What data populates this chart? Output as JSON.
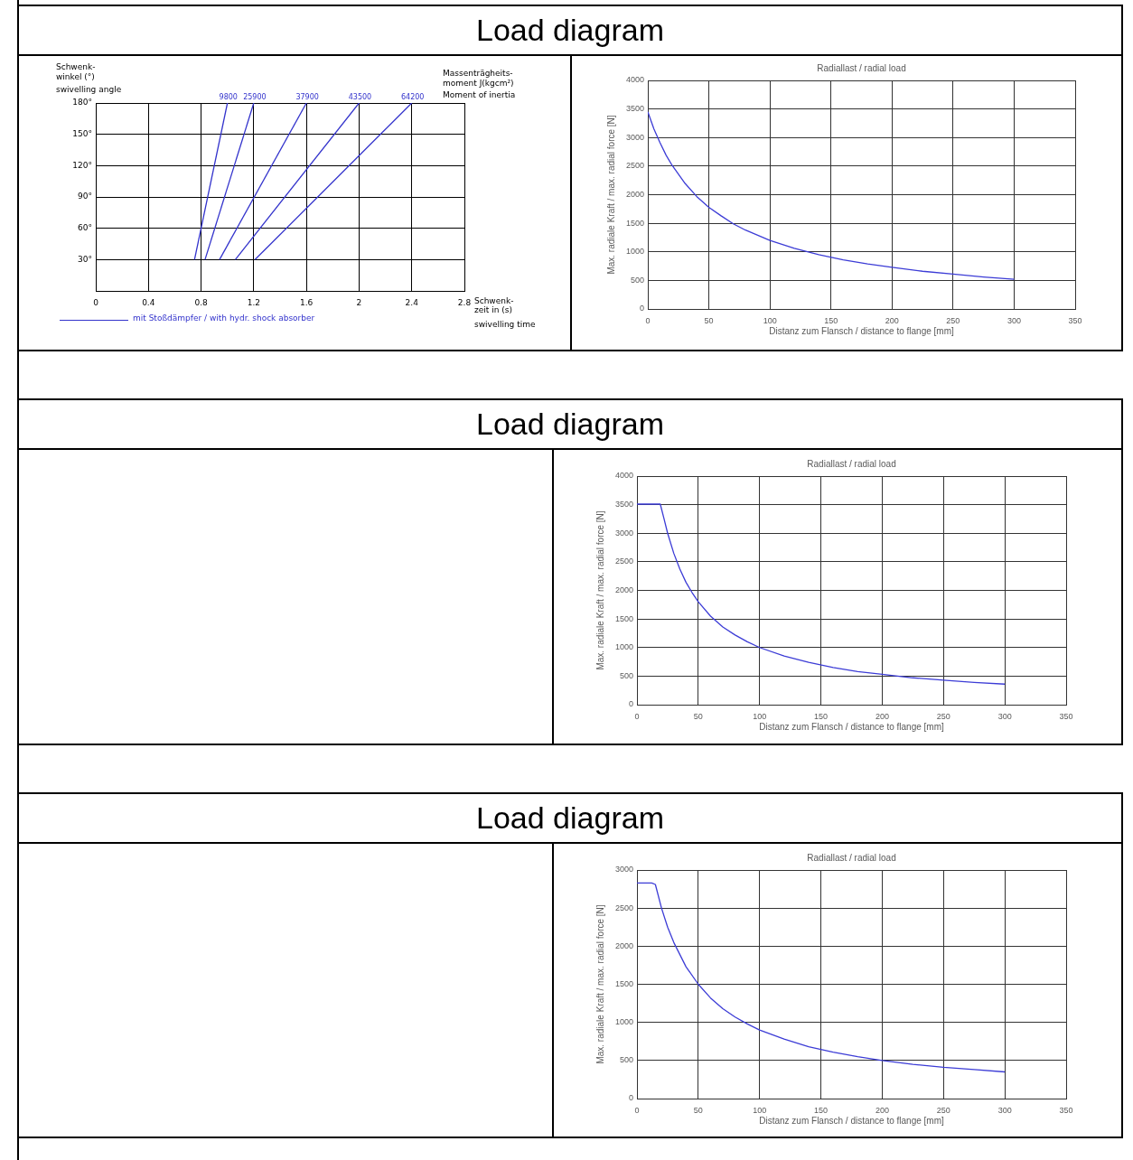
{
  "chart_data": [
    {
      "type": "line",
      "title": "Load diagram",
      "xlabel": "Schwenk-\nzeit in (s)\nswivelling time",
      "ylabel": "Schwenk-\nwinkel (°)\nswivelling angle",
      "legend_title": "Massenträgheits-\nmoment J(kgcm²)\nMoment of inertia",
      "annotations": [
        "mit Stoßdämpfer / with hydr. shock absorber"
      ],
      "xlim": [
        0,
        2.8
      ],
      "xticks": [
        0,
        0.4,
        0.8,
        1.2,
        1.6,
        2,
        2.4,
        2.8
      ],
      "ylim": [
        0,
        180
      ],
      "yticks": [
        {
          "value": 30,
          "label": "30°"
        },
        {
          "value": 60,
          "label": "60°"
        },
        {
          "value": 90,
          "label": "90°"
        },
        {
          "value": 120,
          "label": "120°"
        },
        {
          "value": 150,
          "label": "150°"
        },
        {
          "value": 180,
          "label": "180°"
        }
      ],
      "grid": true,
      "legend": false,
      "series": [
        {
          "name": "9800",
          "color": "#3333cc",
          "x": [
            0.75,
            1.0
          ],
          "values": [
            30,
            180
          ]
        },
        {
          "name": "25900",
          "color": "#3333cc",
          "x": [
            0.83,
            1.2
          ],
          "values": [
            30,
            180
          ]
        },
        {
          "name": "37900",
          "color": "#3333cc",
          "x": [
            0.94,
            1.6
          ],
          "values": [
            30,
            180
          ]
        },
        {
          "name": "43500",
          "color": "#3333cc",
          "x": [
            1.06,
            2.0
          ],
          "values": [
            30,
            180
          ]
        },
        {
          "name": "64200",
          "color": "#3333cc",
          "x": [
            1.21,
            2.4
          ],
          "values": [
            30,
            180
          ]
        }
      ]
    },
    {
      "type": "line",
      "title": "Radiallast / radial load",
      "xlabel": "Distanz zum Flansch / distance to flange [mm]",
      "ylabel": "Max. radiale Kraft / max. radial force [N]",
      "xlim": [
        0,
        350
      ],
      "xticks": [
        0,
        50,
        100,
        150,
        200,
        250,
        300,
        350
      ],
      "ylim": [
        0,
        4000
      ],
      "yticks": [
        0,
        500,
        1000,
        1500,
        2000,
        2500,
        3000,
        3500,
        4000
      ],
      "grid": true,
      "legend": false,
      "series": [
        {
          "color": "#3c3cd6",
          "x": [
            0,
            5,
            10,
            15,
            20,
            30,
            40,
            50,
            60,
            70,
            80,
            90,
            100,
            120,
            140,
            160,
            180,
            200,
            225,
            250,
            275,
            300
          ],
          "values": [
            3450,
            3150,
            2910,
            2690,
            2510,
            2210,
            1970,
            1780,
            1630,
            1490,
            1380,
            1290,
            1200,
            1060,
            950,
            860,
            790,
            730,
            660,
            610,
            560,
            520
          ]
        }
      ]
    },
    {
      "type": "line",
      "title": "Load diagram",
      "subtitle": "Radiallast / radial load",
      "xlabel": "Distanz zum Flansch / distance to flange [mm]",
      "ylabel": "Max. radiale Kraft / max. radial force [N]",
      "xlim": [
        0,
        350
      ],
      "xticks": [
        0,
        50,
        100,
        150,
        200,
        250,
        300,
        350
      ],
      "ylim": [
        0,
        4000
      ],
      "yticks": [
        0,
        500,
        1000,
        1500,
        2000,
        2500,
        3000,
        3500,
        4000
      ],
      "grid": true,
      "legend": false,
      "series": [
        {
          "color": "#3c3cd6",
          "x": [
            0,
            19,
            22,
            25,
            30,
            35,
            40,
            45,
            50,
            60,
            70,
            80,
            90,
            100,
            120,
            140,
            160,
            180,
            200,
            225,
            250,
            275,
            300
          ],
          "values": [
            3510,
            3510,
            3260,
            3000,
            2650,
            2370,
            2140,
            1960,
            1800,
            1550,
            1360,
            1220,
            1100,
            1000,
            850,
            740,
            650,
            580,
            530,
            470,
            430,
            390,
            360
          ]
        }
      ]
    },
    {
      "type": "line",
      "title": "Load diagram",
      "subtitle": "Radiallast / radial load",
      "xlabel": "Distanz zum Flansch / distance to flange [mm]",
      "ylabel": "Max. radiale Kraft / max. radial force [N]",
      "xlim": [
        0,
        350
      ],
      "xticks": [
        0,
        50,
        100,
        150,
        200,
        250,
        300,
        350
      ],
      "ylim": [
        0,
        3000
      ],
      "yticks": [
        0,
        500,
        1000,
        1500,
        2000,
        2500,
        3000
      ],
      "grid": true,
      "legend": false,
      "series": [
        {
          "color": "#3c3cd6",
          "x": [
            0,
            12,
            15,
            20,
            25,
            30,
            40,
            50,
            60,
            70,
            80,
            90,
            100,
            120,
            140,
            160,
            180,
            200,
            225,
            250,
            275,
            300
          ],
          "values": [
            2830,
            2830,
            2810,
            2500,
            2250,
            2050,
            1730,
            1500,
            1320,
            1180,
            1070,
            980,
            900,
            780,
            680,
            610,
            550,
            500,
            450,
            410,
            380,
            350
          ]
        }
      ]
    }
  ]
}
